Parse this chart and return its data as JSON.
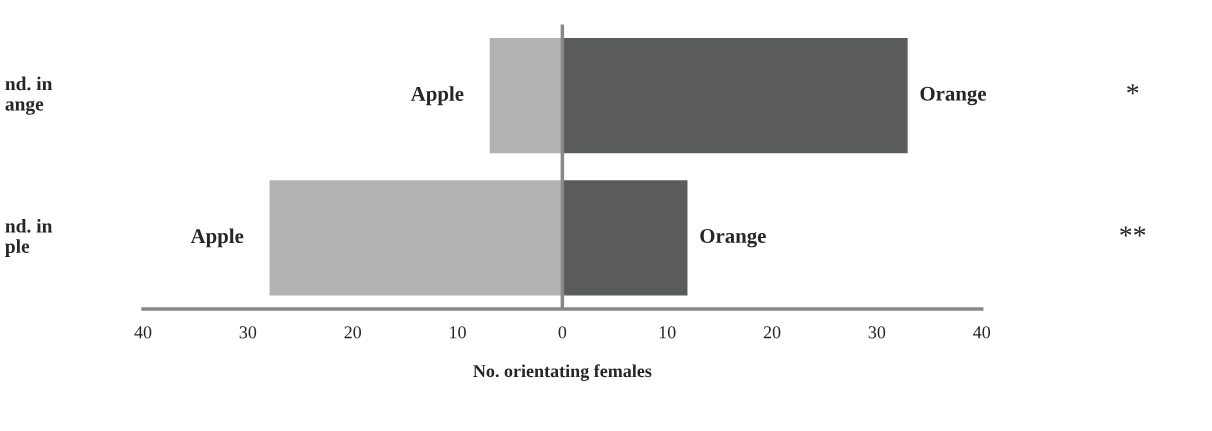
{
  "chart_data": {
    "type": "bar",
    "orientation": "horizontal",
    "stacked": true,
    "categories": [
      "nd. in\nange",
      "nd. in\nple"
    ],
    "series": [
      {
        "name": "Apple",
        "color": "#b3b3b3",
        "values": [
          -7,
          -28
        ]
      },
      {
        "name": "Orange",
        "color": "#5a5c5c",
        "values": [
          33,
          12
        ]
      }
    ],
    "xlim": [
      -40,
      40
    ],
    "xticks": [
      {
        "value": -40,
        "label": "40"
      },
      {
        "value": -30,
        "label": "30"
      },
      {
        "value": -20,
        "label": "20"
      },
      {
        "value": -10,
        "label": "10"
      },
      0,
      10,
      20,
      30,
      40
    ],
    "xlabel": "No. orientating females",
    "annotations": [
      "*",
      "**"
    ],
    "ref_lines": [
      {
        "axis": "x",
        "value": 0,
        "color": "#888888"
      }
    ],
    "grid": false,
    "legend": false
  }
}
